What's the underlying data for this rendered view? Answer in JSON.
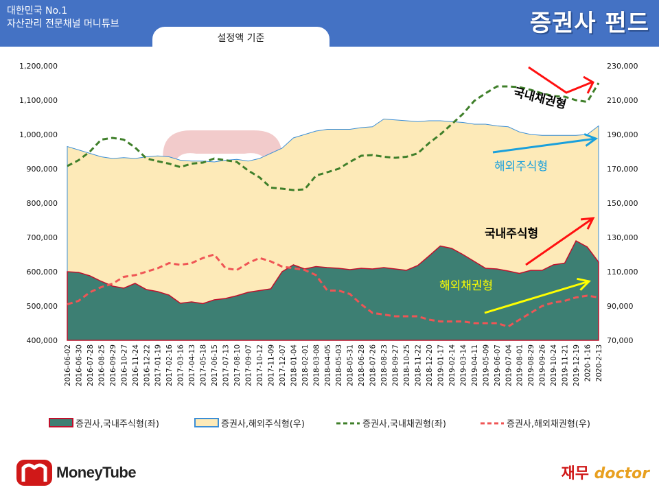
{
  "header": {
    "brand_line1": "대한민국 No.1",
    "brand_line2": "자산관리 전문채널 머니튜브",
    "title": "증권사 펀드",
    "subtitle": "설정액 기준",
    "color": "#4472c4"
  },
  "footer": {
    "logo_text": "MoneyTube",
    "right_logo_part1": "재무",
    "right_logo_part2": "doctor"
  },
  "watermark": {
    "text": "MoneyTube"
  },
  "colors": {
    "domestic_stock": "#3d7f73",
    "domestic_stock_border": "#c0102c",
    "foreign_stock": "#fdeab8",
    "foreign_stock_border": "#3b8ed6",
    "domestic_bond": "#3f7f2a",
    "foreign_bond": "#ef5555",
    "arrow_red": "#ff1010",
    "arrow_blue": "#1aa0dc",
    "arrow_yellow": "#ffff00"
  },
  "chart_data": {
    "type": "area",
    "left_axis": {
      "min": 400000,
      "max": 1200000,
      "step": 100000,
      "ticks": [
        "400,000",
        "500,000",
        "600,000",
        "700,000",
        "800,000",
        "900,000",
        "1,000,000",
        "1,100,000",
        "1,200,000"
      ]
    },
    "right_axis": {
      "min": 70000,
      "max": 230000,
      "step": 20000,
      "ticks": [
        "70,000",
        "90,000",
        "110,000",
        "130,000",
        "150,000",
        "170,000",
        "190,000",
        "210,000",
        "230,000"
      ]
    },
    "x_labels": [
      "2016-06-02",
      "2016-06-30",
      "2016-07-28",
      "2016-08-25",
      "2016-09-29",
      "2016-10-27",
      "2016-11-24",
      "2016-12-22",
      "2017-01-19",
      "2017-02-16",
      "2017-03-16",
      "2017-04-13",
      "2017-05-18",
      "2017-06-15",
      "2017-07-13",
      "2017-08-10",
      "2017-09-07",
      "2017-10-12",
      "2017-11-09",
      "2017-12-07",
      "2018-01-04",
      "2018-02-01",
      "2018-03-08",
      "2018-04-05",
      "2018-05-03",
      "2018-05-31",
      "2018-06-28",
      "2018-07-26",
      "2018-08-23",
      "2018-09-27",
      "2018-10-25",
      "2018-11-22",
      "2018-12-20",
      "2019-01-17",
      "2019-02-14",
      "2019-03-14",
      "2019-04-11",
      "2019-05-09",
      "2019-06-07",
      "2019-07-04",
      "2019-08-01",
      "2019-08-29",
      "2019-09-26",
      "2019-10-24",
      "2019-11-21",
      "2019-12-19",
      "2020-1-16",
      "2020-2-13"
    ],
    "series": [
      {
        "name": "증권사,국내주식형(좌)",
        "axis": "left",
        "style": "area",
        "values": [
          600000,
          598000,
          588000,
          572000,
          558000,
          552000,
          566000,
          548000,
          542000,
          532000,
          508000,
          512000,
          507000,
          518000,
          522000,
          530000,
          540000,
          545000,
          550000,
          600000,
          620000,
          608000,
          615000,
          612000,
          610000,
          606000,
          610000,
          608000,
          612000,
          608000,
          604000,
          618000,
          646000,
          675000,
          668000,
          650000,
          630000,
          610000,
          608000,
          602000,
          595000,
          604000,
          604000,
          620000,
          625000,
          690000,
          672000,
          628000
        ]
      },
      {
        "name": "증권사,해외주식형(우)",
        "axis": "right",
        "style": "area",
        "values": [
          183000,
          181000,
          179000,
          177000,
          176000,
          176500,
          176000,
          177000,
          177500,
          177000,
          175000,
          174500,
          174500,
          174000,
          175000,
          175500,
          174500,
          176000,
          179000,
          182000,
          188000,
          190000,
          192000,
          193000,
          193000,
          193000,
          194000,
          194500,
          199000,
          198500,
          198000,
          197500,
          198000,
          198000,
          197500,
          197000,
          196000,
          196000,
          195000,
          194500,
          191500,
          190000,
          189500,
          189500,
          189500,
          189500,
          190000,
          195000
        ]
      },
      {
        "name": "증권사,국내채권형(좌)",
        "axis": "left",
        "style": "dashed",
        "values": [
          908000,
          925000,
          950000,
          985000,
          990000,
          985000,
          962000,
          930000,
          922000,
          915000,
          905000,
          915000,
          918000,
          930000,
          925000,
          920000,
          895000,
          875000,
          845000,
          842000,
          838000,
          840000,
          880000,
          890000,
          900000,
          920000,
          938000,
          940000,
          935000,
          932000,
          935000,
          945000,
          975000,
          1000000,
          1030000,
          1060000,
          1098000,
          1120000,
          1140000,
          1140000,
          1138000,
          1130000,
          1120000,
          1112000,
          1110000,
          1100000,
          1095000,
          1150000
        ]
      },
      {
        "name": "증권사,해외채권형(우)",
        "axis": "right",
        "style": "dashed",
        "values": [
          91000,
          93000,
          98000,
          101000,
          103000,
          107000,
          108000,
          110000,
          112000,
          115000,
          114000,
          115000,
          118000,
          120000,
          112000,
          111000,
          115000,
          118000,
          116000,
          113000,
          112000,
          111000,
          108000,
          99000,
          99000,
          97000,
          91000,
          86000,
          85000,
          84000,
          84000,
          84000,
          82000,
          81000,
          81000,
          81000,
          80000,
          80000,
          80000,
          78000,
          82000,
          86000,
          90000,
          92000,
          93000,
          95000,
          96000,
          95000
        ]
      }
    ],
    "annotations": [
      {
        "text": "국내채권형",
        "color": "#000000"
      },
      {
        "text": "해외주식형",
        "color": "#1aa0dc"
      },
      {
        "text": "국내주식형",
        "color": "#000000"
      },
      {
        "text": "해외채권형",
        "color": "#ffff00"
      }
    ],
    "legend_position": "bottom",
    "grid": false
  }
}
